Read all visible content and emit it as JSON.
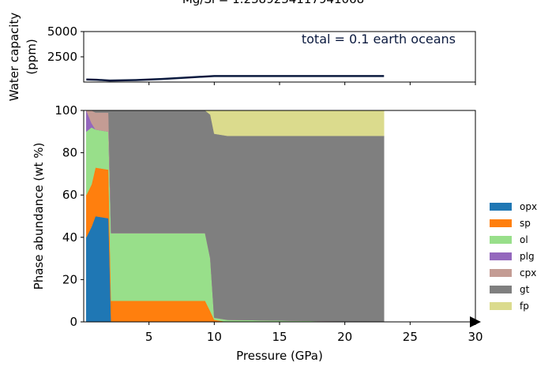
{
  "chart_data": [
    {
      "type": "line",
      "title": "Mg/Si = 1.2389234117941068",
      "ylabel": [
        "Water capacity",
        "(ppm)"
      ],
      "annotation": "total = 0.1 earth oceans",
      "x": [
        0.2,
        1,
        2,
        4,
        6,
        8,
        10,
        11,
        23
      ],
      "series": [
        {
          "color": "#0b1a3f",
          "values": [
            250,
            220,
            150,
            200,
            300,
            450,
            600,
            600,
            600
          ]
        }
      ],
      "xlim": [
        0,
        30
      ],
      "xticks": [
        5,
        10,
        15,
        20,
        25,
        30
      ],
      "ylim": [
        0,
        5000
      ],
      "yticks": [
        2500,
        5000
      ]
    },
    {
      "type": "stackedarea",
      "xlabel": "Pressure (GPa)",
      "ylabel": "Phase abundance (wt %)",
      "x": [
        0.2,
        0.6,
        0.9,
        1.9,
        2.1,
        9.3,
        9.7,
        10,
        11,
        23
      ],
      "series": [
        {
          "name": "opx",
          "color": "#1f77b4",
          "values": [
            40,
            45,
            50,
            49,
            0,
            0,
            0,
            0,
            0,
            0
          ]
        },
        {
          "name": "sp",
          "color": "#ff7f0e",
          "values": [
            20,
            20,
            23,
            23,
            10,
            10,
            5,
            1,
            0,
            0
          ]
        },
        {
          "name": "ol",
          "color": "#98df8a",
          "values": [
            30,
            27,
            18,
            18,
            32,
            32,
            25,
            1,
            1,
            0
          ]
        },
        {
          "name": "plg",
          "color": "#9467bd",
          "values": [
            10,
            2,
            0,
            0,
            0,
            0,
            0,
            0,
            0,
            0
          ]
        },
        {
          "name": "cpx",
          "color": "#c49c94",
          "values": [
            0,
            6,
            8,
            9,
            0,
            0,
            0,
            0,
            0,
            0
          ]
        },
        {
          "name": "gt",
          "color": "#7f7f7f",
          "values": [
            0,
            0,
            1,
            1,
            58,
            58,
            68,
            87,
            87,
            88
          ]
        },
        {
          "name": "fp",
          "color": "#dbdb8d",
          "values": [
            0,
            0,
            0,
            0,
            0,
            0,
            2,
            11,
            12,
            12
          ]
        }
      ],
      "xlim": [
        0,
        30
      ],
      "xticks": [
        5,
        10,
        15,
        20,
        25,
        30
      ],
      "ylim": [
        0,
        100
      ],
      "yticks": [
        0,
        20,
        40,
        60,
        80,
        100
      ]
    }
  ]
}
